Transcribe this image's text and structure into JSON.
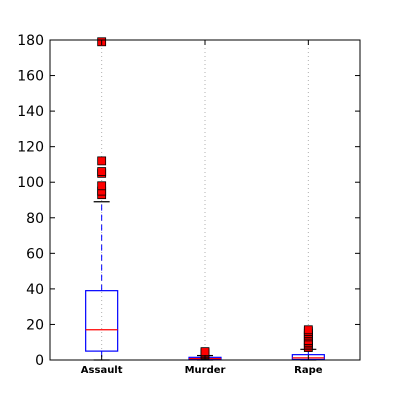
{
  "chart_data": {
    "type": "box",
    "categories": [
      "Assault",
      "Murder",
      "Rape"
    ],
    "ylim": [
      0,
      180
    ],
    "yticks": [
      0,
      20,
      40,
      60,
      80,
      100,
      120,
      140,
      160,
      180
    ],
    "grid": "x-dotted",
    "boxes": [
      {
        "name": "Assault",
        "whisker_low": 0,
        "q1": 5,
        "median": 17,
        "q3": 39,
        "whisker_high": 89,
        "outliers": [
          93,
          95,
          98,
          105,
          106,
          112,
          179
        ]
      },
      {
        "name": "Murder",
        "whisker_low": 0,
        "q1": 0.3,
        "median": 0.8,
        "q3": 1.5,
        "whisker_high": 2.5,
        "outliers": [
          2.8,
          3.4,
          4.0,
          4.7
        ]
      },
      {
        "name": "Rape",
        "whisker_low": 0,
        "q1": 0.3,
        "median": 1.2,
        "q3": 3,
        "whisker_high": 6,
        "outliers": [
          7,
          8,
          9,
          10,
          11,
          13,
          14,
          15,
          16,
          17
        ]
      }
    ],
    "colors": {
      "box": "#0000ff",
      "median": "#ff0000",
      "whisker": "#0000ff",
      "cap": "#000000",
      "outlier_fill": "#ff0000",
      "outlier_edge": "#000000",
      "grid": "#b0b0b0"
    }
  }
}
